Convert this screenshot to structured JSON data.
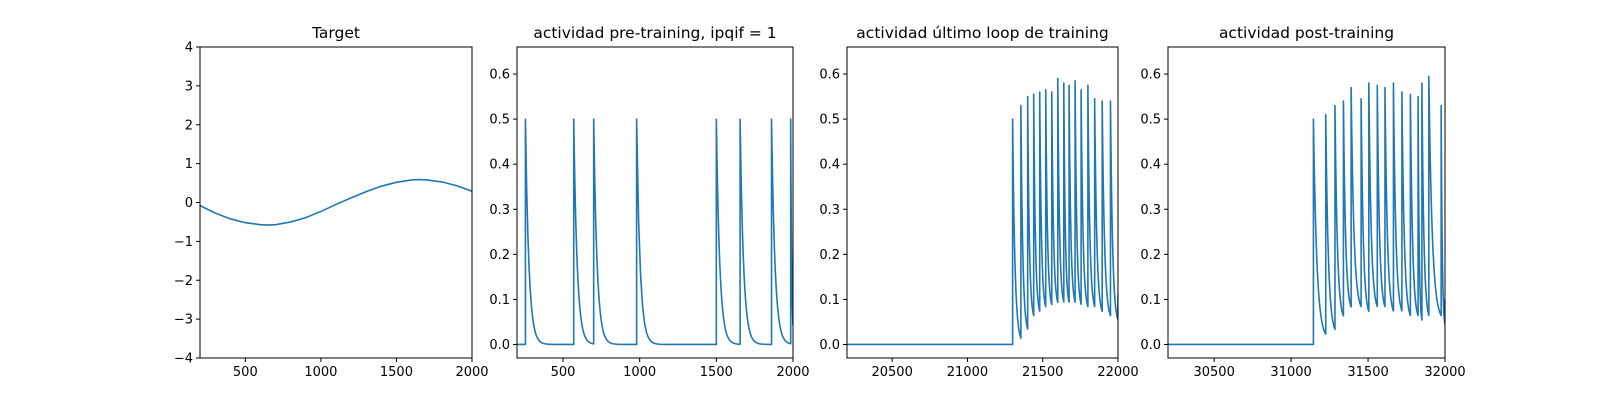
{
  "chart_data": [
    {
      "type": "line",
      "title": "Target",
      "xlabel": "",
      "ylabel": "",
      "xlim": [
        200,
        2000
      ],
      "ylim": [
        -4,
        4
      ],
      "xticks": [
        500,
        1000,
        1500,
        2000
      ],
      "xtick_labels": [
        "500",
        "1000",
        "1500",
        "2000"
      ],
      "yticks": [
        -4,
        -3,
        -2,
        -1,
        0,
        1,
        2,
        3,
        4
      ],
      "ytick_labels": [
        "−4",
        "−3",
        "−2",
        "−1",
        "0",
        "1",
        "2",
        "3",
        "4"
      ],
      "grid": false,
      "color": "#1f77b4",
      "series": [
        {
          "x": [
            200,
            300,
            400,
            500,
            600,
            650,
            700,
            800,
            900,
            1000,
            1100,
            1200,
            1300,
            1400,
            1500,
            1600,
            1650,
            1700,
            1800,
            1900,
            2000
          ],
          "y": [
            -0.08,
            -0.27,
            -0.42,
            -0.52,
            -0.57,
            -0.58,
            -0.57,
            -0.5,
            -0.39,
            -0.23,
            -0.05,
            0.12,
            0.28,
            0.42,
            0.52,
            0.58,
            0.59,
            0.58,
            0.53,
            0.43,
            0.29
          ]
        }
      ]
    },
    {
      "type": "line",
      "title": "actividad pre-training, ipqif = 1",
      "xlabel": "",
      "ylabel": "",
      "xlim": [
        200,
        2000
      ],
      "ylim": [
        -0.03,
        0.66
      ],
      "xticks": [
        500,
        1000,
        1500,
        2000
      ],
      "xtick_labels": [
        "500",
        "1000",
        "1500",
        "2000"
      ],
      "yticks": [
        0.0,
        0.1,
        0.2,
        0.3,
        0.4,
        0.5,
        0.6
      ],
      "ytick_labels": [
        "0.0",
        "0.1",
        "0.2",
        "0.3",
        "0.4",
        "0.5",
        "0.6"
      ],
      "grid": false,
      "color": "#1f77b4",
      "series": [
        {
          "baseline": 0,
          "spikes": [
            {
              "t": 255,
              "peak": 0.5
            },
            {
              "t": 570,
              "peak": 0.5
            },
            {
              "t": 700,
              "peak": 0.5
            },
            {
              "t": 980,
              "peak": 0.5
            },
            {
              "t": 1500,
              "peak": 0.5
            },
            {
              "t": 1655,
              "peak": 0.5
            },
            {
              "t": 1860,
              "peak": 0.5
            },
            {
              "t": 1985,
              "peak": 0.5
            }
          ],
          "end_value": 0.18
        }
      ]
    },
    {
      "type": "line",
      "title": "actividad último loop de training",
      "xlabel": "",
      "ylabel": "",
      "xlim": [
        20200,
        22000
      ],
      "ylim": [
        -0.03,
        0.66
      ],
      "xticks": [
        20500,
        21000,
        21500,
        22000
      ],
      "xtick_labels": [
        "20500",
        "21000",
        "21500",
        "22000"
      ],
      "yticks": [
        0.0,
        0.1,
        0.2,
        0.3,
        0.4,
        0.5,
        0.6
      ],
      "ytick_labels": [
        "0.0",
        "0.1",
        "0.2",
        "0.3",
        "0.4",
        "0.5",
        "0.6"
      ],
      "grid": false,
      "color": "#1f77b4",
      "series": [
        {
          "baseline": 0,
          "spikes": [
            {
              "t": 21300,
              "peak": 0.5,
              "trough": 0.0
            },
            {
              "t": 21355,
              "peak": 0.53,
              "trough": 0.02
            },
            {
              "t": 21400,
              "peak": 0.55,
              "trough": 0.05
            },
            {
              "t": 21440,
              "peak": 0.555,
              "trough": 0.06
            },
            {
              "t": 21480,
              "peak": 0.56,
              "trough": 0.07
            },
            {
              "t": 21520,
              "peak": 0.565,
              "trough": 0.075
            },
            {
              "t": 21560,
              "peak": 0.56,
              "trough": 0.08
            },
            {
              "t": 21600,
              "peak": 0.59,
              "trough": 0.08
            },
            {
              "t": 21640,
              "peak": 0.58,
              "trough": 0.08
            },
            {
              "t": 21675,
              "peak": 0.575,
              "trough": 0.08
            },
            {
              "t": 21715,
              "peak": 0.585,
              "trough": 0.075
            },
            {
              "t": 21755,
              "peak": 0.565,
              "trough": 0.07
            },
            {
              "t": 21800,
              "peak": 0.575,
              "trough": 0.07
            },
            {
              "t": 21845,
              "peak": 0.545,
              "trough": 0.06
            },
            {
              "t": 21895,
              "peak": 0.54,
              "trough": 0.05
            },
            {
              "t": 21950,
              "peak": 0.54,
              "trough": 0.04
            }
          ],
          "end_value": 0.11
        }
      ]
    },
    {
      "type": "line",
      "title": "actividad post-training",
      "xlabel": "",
      "ylabel": "",
      "xlim": [
        30200,
        32000
      ],
      "ylim": [
        -0.03,
        0.66
      ],
      "xticks": [
        30500,
        31000,
        31500,
        32000
      ],
      "xtick_labels": [
        "30500",
        "31000",
        "31500",
        "32000"
      ],
      "yticks": [
        0.0,
        0.1,
        0.2,
        0.3,
        0.4,
        0.5,
        0.6
      ],
      "ytick_labels": [
        "0.0",
        "0.1",
        "0.2",
        "0.3",
        "0.4",
        "0.5",
        "0.6"
      ],
      "grid": false,
      "color": "#1f77b4",
      "series": [
        {
          "baseline": 0,
          "spikes": [
            {
              "t": 31145,
              "peak": 0.5,
              "trough": 0.01
            },
            {
              "t": 31225,
              "peak": 0.51,
              "trough": 0.02
            },
            {
              "t": 31285,
              "peak": 0.53,
              "trough": 0.05
            },
            {
              "t": 31340,
              "peak": 0.54,
              "trough": 0.07
            },
            {
              "t": 31390,
              "peak": 0.57,
              "trough": 0.07
            },
            {
              "t": 31455,
              "peak": 0.545,
              "trough": 0.06
            },
            {
              "t": 31505,
              "peak": 0.58,
              "trough": 0.07
            },
            {
              "t": 31560,
              "peak": 0.575,
              "trough": 0.07
            },
            {
              "t": 31610,
              "peak": 0.57,
              "trough": 0.06
            },
            {
              "t": 31665,
              "peak": 0.58,
              "trough": 0.06
            },
            {
              "t": 31720,
              "peak": 0.56,
              "trough": 0.05
            },
            {
              "t": 31775,
              "peak": 0.555,
              "trough": 0.05
            },
            {
              "t": 31825,
              "peak": 0.55,
              "trough": 0.04
            },
            {
              "t": 31850,
              "peak": 0.58,
              "trough": 0.05
            },
            {
              "t": 31895,
              "peak": 0.595,
              "trough": 0.05
            },
            {
              "t": 31975,
              "peak": 0.53,
              "trough": 0.03
            }
          ],
          "end_value": 0.1
        }
      ]
    }
  ]
}
